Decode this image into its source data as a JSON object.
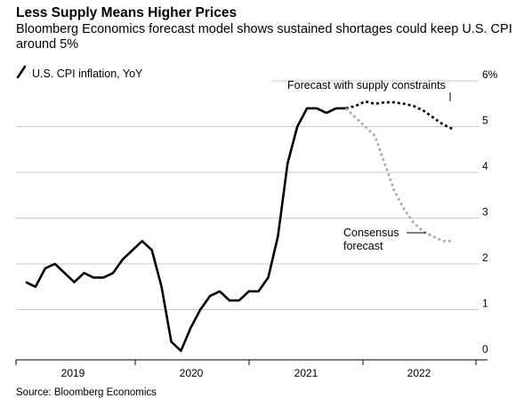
{
  "title": "Less Supply Means Higher Prices",
  "subtitle": "Bloomberg Economics forecast model shows sustained shortages could keep U.S. CPI around 5%",
  "source": "Source: Bloomberg Economics",
  "chart_data": {
    "type": "line",
    "title": "Less Supply Means Higher Prices",
    "legend": "U.S. CPI inflation, YoY",
    "ylim": [
      0,
      6
    ],
    "y_ticks": [
      "0",
      "1",
      "2",
      "3",
      "4",
      "5",
      "6%"
    ],
    "year_labels": [
      "2019",
      "2020",
      "2021",
      "2022"
    ],
    "grid": true,
    "series": [
      {
        "name": "U.S. CPI inflation, YoY",
        "style": "solid",
        "color": "#000000",
        "x": [
          "2019-01",
          "2019-02",
          "2019-03",
          "2019-04",
          "2019-05",
          "2019-06",
          "2019-07",
          "2019-08",
          "2019-09",
          "2019-10",
          "2019-11",
          "2019-12",
          "2020-01",
          "2020-02",
          "2020-03",
          "2020-04",
          "2020-05",
          "2020-06",
          "2020-07",
          "2020-08",
          "2020-09",
          "2020-10",
          "2020-11",
          "2020-12",
          "2021-01",
          "2021-02",
          "2021-03",
          "2021-04",
          "2021-05",
          "2021-06",
          "2021-07",
          "2021-08",
          "2021-09",
          "2021-10"
        ],
        "values": [
          1.6,
          1.5,
          1.9,
          2.0,
          1.8,
          1.6,
          1.8,
          1.7,
          1.7,
          1.8,
          2.1,
          2.3,
          2.5,
          2.3,
          1.5,
          0.3,
          0.1,
          0.6,
          1.0,
          1.3,
          1.4,
          1.2,
          1.2,
          1.4,
          1.4,
          1.7,
          2.6,
          4.2,
          5.0,
          5.4,
          5.4,
          5.3,
          5.4,
          5.4
        ]
      },
      {
        "name": "Forecast with supply constraints",
        "style": "dotted",
        "color": "#000000",
        "x": [
          "2021-10",
          "2021-11",
          "2021-12",
          "2022-01",
          "2022-02",
          "2022-03",
          "2022-04",
          "2022-05",
          "2022-06",
          "2022-07",
          "2022-08",
          "2022-09"
        ],
        "values": [
          5.4,
          5.45,
          5.55,
          5.5,
          5.53,
          5.53,
          5.5,
          5.45,
          5.35,
          5.2,
          5.05,
          4.95
        ]
      },
      {
        "name": "Consensus forecast",
        "style": "dotted",
        "color": "#aaaaaa",
        "x": [
          "2021-10",
          "2021-11",
          "2021-12",
          "2022-01",
          "2022-02",
          "2022-03",
          "2022-04",
          "2022-05",
          "2022-06",
          "2022-07",
          "2022-08",
          "2022-09"
        ],
        "values": [
          5.4,
          5.2,
          5.0,
          4.8,
          4.2,
          3.6,
          3.2,
          2.9,
          2.7,
          2.6,
          2.5,
          2.5
        ]
      }
    ],
    "annotations": [
      {
        "series": 1,
        "lines": [
          "Forecast with supply constraints"
        ]
      },
      {
        "series": 2,
        "lines": [
          "Consensus",
          "forecast"
        ]
      }
    ]
  }
}
